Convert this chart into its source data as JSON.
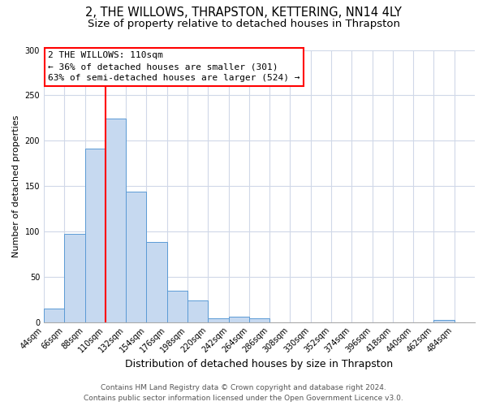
{
  "title": "2, THE WILLOWS, THRAPSTON, KETTERING, NN14 4LY",
  "subtitle": "Size of property relative to detached houses in Thrapston",
  "xlabel": "Distribution of detached houses by size in Thrapston",
  "ylabel": "Number of detached properties",
  "bar_edges": [
    44,
    66,
    88,
    110,
    132,
    154,
    176,
    198,
    220,
    242,
    264,
    286,
    308,
    330,
    352,
    374,
    396,
    418,
    440,
    462,
    484
  ],
  "bar_heights": [
    15,
    97,
    191,
    224,
    144,
    88,
    35,
    24,
    4,
    6,
    4,
    0,
    0,
    0,
    0,
    0,
    0,
    0,
    0,
    2
  ],
  "bar_color": "#c6d9f0",
  "bar_edgecolor": "#5b9bd5",
  "vline_x": 110,
  "vline_color": "red",
  "vline_linewidth": 1.5,
  "annotation_title": "2 THE WILLOWS: 110sqm",
  "annotation_line1": "← 36% of detached houses are smaller (301)",
  "annotation_line2": "63% of semi-detached houses are larger (524) →",
  "annotation_box_edgecolor": "red",
  "ylim": [
    0,
    300
  ],
  "yticks": [
    0,
    50,
    100,
    150,
    200,
    250,
    300
  ],
  "tick_labels": [
    "44sqm",
    "66sqm",
    "88sqm",
    "110sqm",
    "132sqm",
    "154sqm",
    "176sqm",
    "198sqm",
    "220sqm",
    "242sqm",
    "264sqm",
    "286sqm",
    "308sqm",
    "330sqm",
    "352sqm",
    "374sqm",
    "396sqm",
    "418sqm",
    "440sqm",
    "462sqm",
    "484sqm"
  ],
  "footer1": "Contains HM Land Registry data © Crown copyright and database right 2024.",
  "footer2": "Contains public sector information licensed under the Open Government Licence v3.0.",
  "grid_color": "#d0d8e8",
  "background_color": "#ffffff",
  "title_fontsize": 10.5,
  "subtitle_fontsize": 9.5,
  "xlabel_fontsize": 9,
  "ylabel_fontsize": 8,
  "tick_fontsize": 7,
  "footer_fontsize": 6.5,
  "annot_fontsize": 8
}
